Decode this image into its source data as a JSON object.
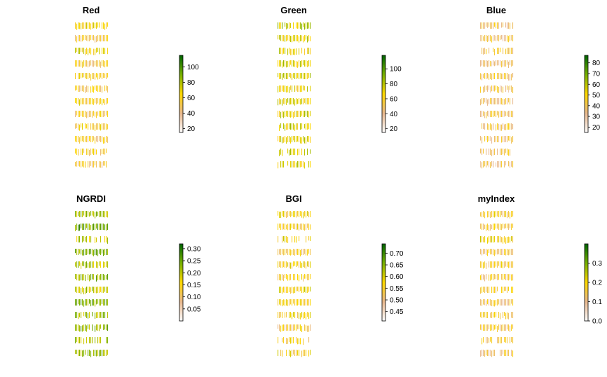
{
  "chart_data": [
    {
      "type": "heatmap",
      "title": "Red",
      "legend": "right",
      "colors": [
        "#ffffff",
        "#e8b88e",
        "#ffd800",
        "#78b000",
        "#006400"
      ],
      "range": [
        15,
        115
      ],
      "ticks": [
        20,
        40,
        60,
        80,
        100
      ],
      "tick_labels": [
        "20",
        "40",
        "60",
        "80",
        "100"
      ],
      "rows": [
        62,
        50,
        66,
        55,
        58,
        52,
        60,
        54,
        57,
        53,
        56,
        49
      ],
      "row_density": [
        0.8,
        0.85,
        0.65,
        0.85,
        0.8,
        0.75,
        0.8,
        0.9,
        0.75,
        0.8,
        0.55,
        0.7
      ]
    },
    {
      "type": "heatmap",
      "title": "Green",
      "legend": "right",
      "colors": [
        "#ffffff",
        "#e8b88e",
        "#ffd800",
        "#78b000",
        "#006400"
      ],
      "range": [
        15,
        118
      ],
      "ticks": [
        20,
        40,
        60,
        80,
        100
      ],
      "tick_labels": [
        "20",
        "40",
        "60",
        "80",
        "100"
      ],
      "rows": [
        78,
        72,
        70,
        74,
        72,
        68,
        70,
        71,
        73,
        72,
        70,
        68
      ],
      "row_density": [
        0.8,
        0.85,
        0.65,
        0.85,
        0.8,
        0.75,
        0.8,
        0.9,
        0.75,
        0.8,
        0.55,
        0.7
      ]
    },
    {
      "type": "heatmap",
      "title": "Blue",
      "legend": "right",
      "colors": [
        "#ffffff",
        "#e8b88e",
        "#ffd800",
        "#78b000",
        "#006400"
      ],
      "range": [
        15,
        87
      ],
      "ticks": [
        20,
        30,
        40,
        50,
        60,
        70,
        80
      ],
      "tick_labels": [
        "20",
        "30",
        "40",
        "50",
        "60",
        "70",
        "80"
      ],
      "rows": [
        40,
        38,
        42,
        36,
        40,
        37,
        39,
        38,
        40,
        37,
        38,
        36
      ],
      "row_density": [
        0.8,
        0.85,
        0.65,
        0.85,
        0.8,
        0.75,
        0.8,
        0.9,
        0.75,
        0.8,
        0.55,
        0.7
      ]
    },
    {
      "type": "heatmap",
      "title": "NGRDI",
      "legend": "right",
      "colors": [
        "#ffffff",
        "#e8b88e",
        "#ffd800",
        "#78b000",
        "#006400"
      ],
      "range": [
        0.0,
        0.32
      ],
      "ticks": [
        0.05,
        0.1,
        0.15,
        0.2,
        0.25,
        0.3
      ],
      "tick_labels": [
        "0.05",
        "0.10",
        "0.15",
        "0.20",
        "0.25",
        "0.30"
      ],
      "rows": [
        0.22,
        0.25,
        0.19,
        0.24,
        0.21,
        0.23,
        0.2,
        0.24,
        0.22,
        0.23,
        0.2,
        0.22
      ],
      "row_density": [
        0.8,
        0.85,
        0.65,
        0.85,
        0.8,
        0.75,
        0.8,
        0.9,
        0.75,
        0.8,
        0.55,
        0.7
      ]
    },
    {
      "type": "heatmap",
      "title": "BGI",
      "legend": "right",
      "colors": [
        "#ffffff",
        "#e8b88e",
        "#ffd800",
        "#78b000",
        "#006400"
      ],
      "range": [
        0.41,
        0.74
      ],
      "ticks": [
        0.45,
        0.5,
        0.55,
        0.6,
        0.65,
        0.7
      ],
      "tick_labels": [
        "0.45",
        "0.50",
        "0.55",
        "0.60",
        "0.65",
        "0.70"
      ],
      "rows": [
        0.56,
        0.55,
        0.57,
        0.54,
        0.56,
        0.55,
        0.57,
        0.55,
        0.56,
        0.54,
        0.55,
        0.56
      ],
      "row_density": [
        0.8,
        0.85,
        0.65,
        0.85,
        0.8,
        0.75,
        0.8,
        0.9,
        0.75,
        0.8,
        0.55,
        0.7
      ]
    },
    {
      "type": "heatmap",
      "title": "myIndex",
      "legend": "right",
      "colors": [
        "#ffffff",
        "#e8b88e",
        "#ffd800",
        "#78b000",
        "#006400"
      ],
      "range": [
        0.0,
        0.4
      ],
      "ticks": [
        0.0,
        0.1,
        0.2,
        0.3
      ],
      "tick_labels": [
        "0.0",
        "0.1",
        "0.2",
        "0.3"
      ],
      "rows": [
        0.17,
        0.15,
        0.19,
        0.14,
        0.16,
        0.15,
        0.17,
        0.14,
        0.16,
        0.15,
        0.14,
        0.13
      ],
      "row_density": [
        0.8,
        0.85,
        0.65,
        0.85,
        0.8,
        0.75,
        0.8,
        0.9,
        0.75,
        0.8,
        0.55,
        0.7
      ]
    }
  ]
}
